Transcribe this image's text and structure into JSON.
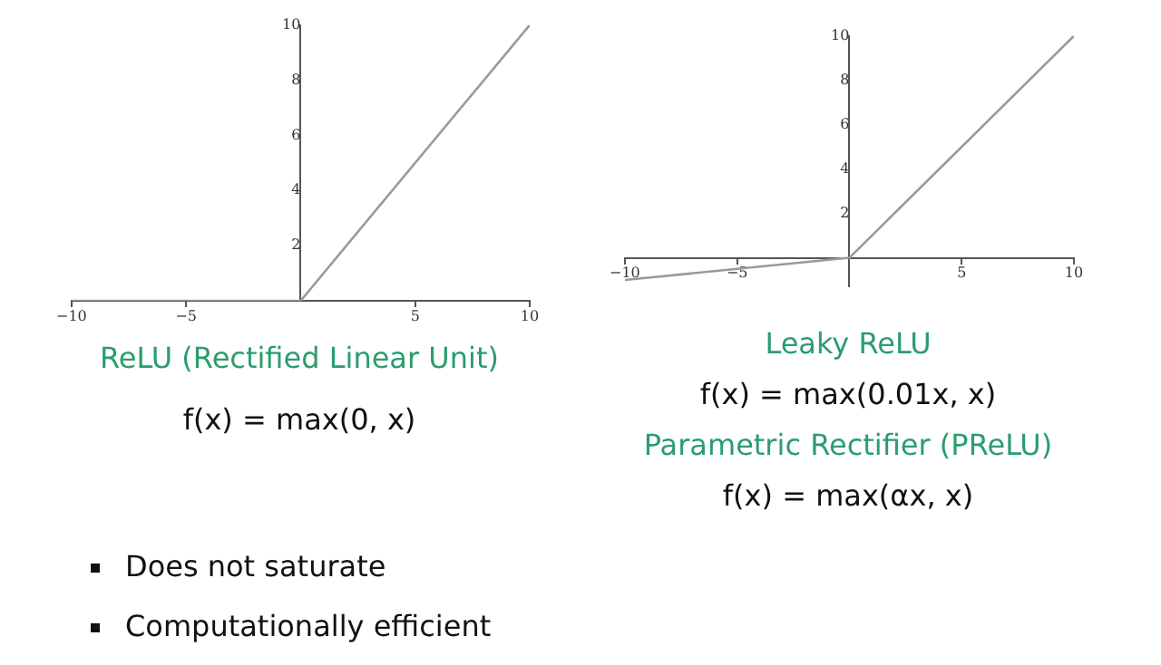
{
  "chart_data": [
    {
      "type": "line",
      "title": "ReLU (Rectified Linear Unit)",
      "subtitle": "f(x) = max(0, x)",
      "x": [
        -10,
        0,
        10
      ],
      "series": [
        {
          "color": "#9a9a9a",
          "values": [
            0,
            0,
            10
          ]
        }
      ],
      "xlim": [
        -10,
        10
      ],
      "ylim": [
        0,
        10
      ],
      "xticks": [
        -10,
        -5,
        5,
        10
      ],
      "yticks": [
        2,
        4,
        6,
        8,
        10
      ],
      "grid": false,
      "marker": "none"
    },
    {
      "type": "line",
      "title": "Leaky ReLU",
      "subtitle": "f(x) = max(0.01x, x)",
      "x": [
        -10,
        0,
        10
      ],
      "series": [
        {
          "color": "#9a9a9a",
          "values": [
            -1,
            0,
            10
          ]
        }
      ],
      "xlim": [
        -10,
        10
      ],
      "ylim": [
        -1.3,
        10
      ],
      "xticks": [
        -10,
        -5,
        5,
        10
      ],
      "yticks": [
        2,
        4,
        6,
        8,
        10
      ],
      "grid": false,
      "marker": "none",
      "annotations": [
        "Parametric Rectifier (PReLU)",
        "f(x) = max(αx, x)"
      ]
    },
    {
      "type": "other",
      "annotations": [
        "Does not saturate",
        "Computationally efficient"
      ]
    }
  ]
}
